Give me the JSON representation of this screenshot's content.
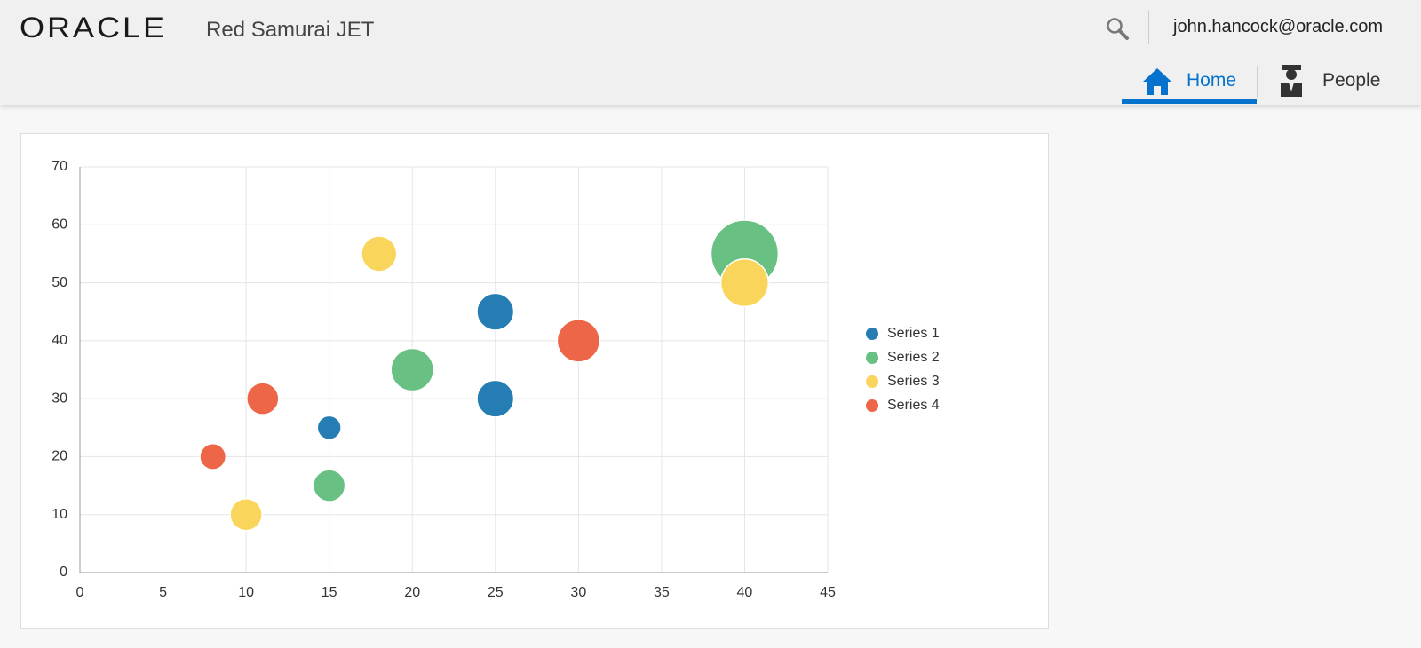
{
  "header": {
    "logo": "ORACLE",
    "app_name": "Red Samurai JET",
    "user": "john.hancock@oracle.com"
  },
  "nav": [
    {
      "label": "Home",
      "active": true
    },
    {
      "label": "People",
      "active": false
    }
  ],
  "chart_data": {
    "type": "bubble",
    "xlim": [
      0,
      45
    ],
    "xticks": [
      0,
      5,
      10,
      15,
      20,
      25,
      30,
      35,
      40,
      45
    ],
    "ylim": [
      0,
      70
    ],
    "yticks": [
      0,
      10,
      20,
      30,
      40,
      50,
      60,
      70
    ],
    "grid": true,
    "legend": "right",
    "series": [
      {
        "name": "Series 1",
        "color": "#267db3",
        "x": [
          15,
          25,
          25
        ],
        "values": [
          25,
          30,
          45
        ],
        "sizes": [
          5,
          12,
          12
        ]
      },
      {
        "name": "Series 2",
        "color": "#68c182",
        "x": [
          15,
          20,
          40
        ],
        "values": [
          15,
          35,
          55
        ],
        "sizes": [
          9,
          16,
          40
        ]
      },
      {
        "name": "Series 3",
        "color": "#fad55c",
        "x": [
          10,
          18,
          40
        ],
        "values": [
          10,
          55,
          50
        ],
        "sizes": [
          9,
          11,
          20
        ]
      },
      {
        "name": "Series 4",
        "color": "#ed6647",
        "x": [
          8,
          11,
          30
        ],
        "values": [
          20,
          30,
          40
        ],
        "sizes": [
          6,
          9,
          16
        ]
      }
    ]
  }
}
